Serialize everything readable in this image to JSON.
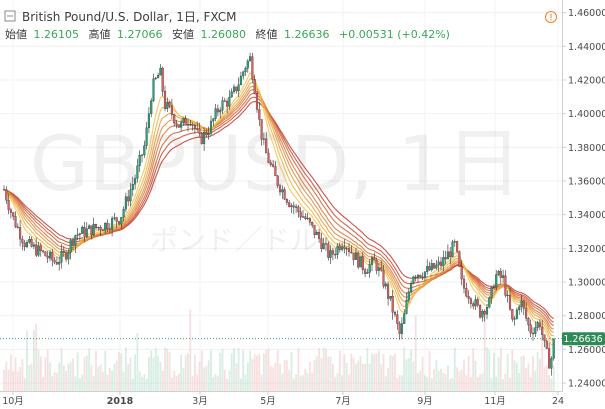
{
  "header": {
    "toggle_symbol": "⊟",
    "title": "British Pound/U.S. Dollar, 1日, FXCM",
    "open_label": "始値",
    "open": "1.26105",
    "high_label": "高値",
    "high": "1.27066",
    "low_label": "安値",
    "low": "1.26080",
    "close_label": "終値",
    "close": "1.26636",
    "change": "+0.00531 (+0.42%)",
    "alert_symbol": "!"
  },
  "watermark": {
    "symbol": "GBPUSD, 1日",
    "name": "ポンド／ドル"
  },
  "colors": {
    "up": "#26a17a",
    "down": "#e05d5d",
    "ribbon_fast": "#f6c342",
    "ribbon_slow": "#c2352b",
    "last_price_tag": "#2e8a57"
  },
  "chart_data": {
    "type": "candlestick",
    "symbol": "British Pound/U.S. Dollar",
    "interval": "1日",
    "source": "FXCM",
    "x_tick_labels": [
      "10月",
      "2018",
      "3月",
      "5月",
      "7月",
      "9月",
      "11月",
      "24"
    ],
    "x_tick_positions": [
      13,
      120,
      200,
      268,
      343,
      425,
      495,
      558
    ],
    "y_tick_labels": [
      "1.46000",
      "1.44000",
      "1.42000",
      "1.40000",
      "1.38000",
      "1.36000",
      "1.34000",
      "1.32000",
      "1.30000",
      "1.28000",
      "1.26000",
      "1.24000"
    ],
    "ylim": [
      1.2353,
      1.4675
    ],
    "last_price": "1.26636",
    "last_price_value": 1.26636,
    "overlay": "ribbon of 8 moving averages (yellow = fast, dark red = slow)",
    "price_path_x": [
      4,
      13,
      25,
      40,
      55,
      65,
      75,
      90,
      105,
      120,
      135,
      145,
      152,
      160,
      165,
      170,
      180,
      190,
      200,
      210,
      220,
      230,
      240,
      245,
      250,
      255,
      260,
      265,
      275,
      290,
      305,
      320,
      330,
      343,
      355,
      365,
      375,
      385,
      392,
      400,
      405,
      412,
      425,
      440,
      455,
      462,
      470,
      480,
      490,
      495,
      503,
      513,
      520,
      530,
      540,
      545,
      550,
      555
    ],
    "price_path_close": [
      1.355,
      1.338,
      1.323,
      1.318,
      1.312,
      1.316,
      1.328,
      1.331,
      1.334,
      1.338,
      1.362,
      1.382,
      1.415,
      1.425,
      1.405,
      1.402,
      1.392,
      1.398,
      1.384,
      1.392,
      1.405,
      1.408,
      1.42,
      1.428,
      1.433,
      1.415,
      1.392,
      1.378,
      1.362,
      1.347,
      1.338,
      1.325,
      1.315,
      1.325,
      1.315,
      1.308,
      1.312,
      1.298,
      1.285,
      1.268,
      1.282,
      1.305,
      1.306,
      1.31,
      1.322,
      1.298,
      1.292,
      1.282,
      1.288,
      1.304,
      1.302,
      1.274,
      1.29,
      1.271,
      1.276,
      1.26,
      1.251,
      1.265
    ]
  }
}
